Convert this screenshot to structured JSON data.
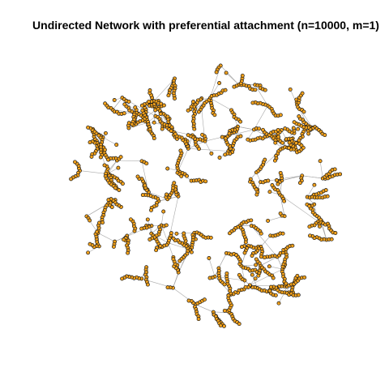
{
  "title": "Undirected Network with preferential attachment (n=10000, m=1)",
  "diagram_data": {
    "type": "network",
    "directed": false,
    "model": "preferential attachment",
    "n": 10000,
    "m": 1,
    "layout": "circular cloud",
    "colors": {
      "background": "#ffffff",
      "node_fill": "#f2a11b",
      "node_stroke": "#1a1a1a",
      "edge": "#a9a9a9",
      "title": "#000000"
    }
  }
}
